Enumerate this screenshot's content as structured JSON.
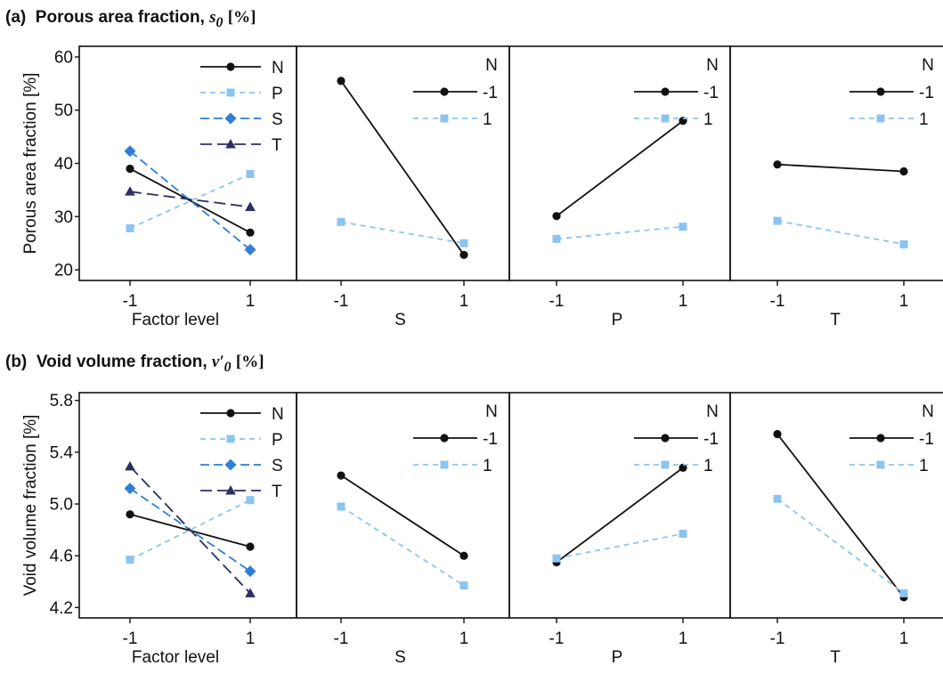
{
  "rows": [
    {
      "tag": "(a)",
      "title": "Porous area fraction,",
      "symbol": "s",
      "symbol_sub": "0",
      "unit": "[%]"
    },
    {
      "tag": "(b)",
      "title": "Void volume fraction,",
      "symbol": "v′",
      "symbol_sub": "0",
      "unit": "[%]"
    }
  ],
  "colors": {
    "N": "#111111",
    "P": "#8cc4f0",
    "S": "#2f7fd8",
    "T": "#2b2f63",
    "minus1": "#111111",
    "plus1": "#8cc4f0"
  },
  "chart_data": [
    {
      "type": "line",
      "title": "Porous area fraction, s0 [%]",
      "ylabel": "Porous area fraction [%]",
      "ylim": [
        18,
        62
      ],
      "yticks": [
        20,
        30,
        40,
        50,
        60
      ],
      "panels": [
        {
          "kind": "main",
          "xlabel": "Factor level",
          "x": [
            "-1",
            "1"
          ],
          "series": [
            {
              "name": "N",
              "values": [
                39,
                27
              ]
            },
            {
              "name": "P",
              "values": [
                27.8,
                38
              ]
            },
            {
              "name": "S",
              "values": [
                42.3,
                23.8
              ]
            },
            {
              "name": "T",
              "values": [
                34.7,
                31.8
              ]
            }
          ]
        },
        {
          "kind": "interaction",
          "xlabel": "S",
          "x": [
            "-1",
            "1"
          ],
          "legend_title": "N",
          "series": [
            {
              "name": "-1",
              "values": [
                55.5,
                22.8
              ]
            },
            {
              "name": "1",
              "values": [
                29,
                25
              ]
            }
          ]
        },
        {
          "kind": "interaction",
          "xlabel": "P",
          "x": [
            "-1",
            "1"
          ],
          "legend_title": "N",
          "series": [
            {
              "name": "-1",
              "values": [
                30.1,
                48
              ]
            },
            {
              "name": "1",
              "values": [
                25.8,
                28.1
              ]
            }
          ]
        },
        {
          "kind": "interaction",
          "xlabel": "T",
          "x": [
            "-1",
            "1"
          ],
          "legend_title": "N",
          "series": [
            {
              "name": "-1",
              "values": [
                39.8,
                38.5
              ]
            },
            {
              "name": "1",
              "values": [
                29.2,
                24.8
              ]
            }
          ]
        }
      ]
    },
    {
      "type": "line",
      "title": "Void volume fraction, v′0 [%]",
      "ylabel": "Void volume fraction [%]",
      "ylim": [
        4.12,
        5.86
      ],
      "yticks": [
        "4.2",
        "4.6",
        "5.0",
        "5.4",
        "5.8"
      ],
      "panels": [
        {
          "kind": "main",
          "xlabel": "Factor level",
          "x": [
            "-1",
            "1"
          ],
          "series": [
            {
              "name": "N",
              "values": [
                4.92,
                4.67
              ]
            },
            {
              "name": "P",
              "values": [
                4.57,
                5.03
              ]
            },
            {
              "name": "S",
              "values": [
                5.12,
                4.48
              ]
            },
            {
              "name": "T",
              "values": [
                5.29,
                4.31
              ]
            }
          ]
        },
        {
          "kind": "interaction",
          "xlabel": "S",
          "x": [
            "-1",
            "1"
          ],
          "legend_title": "N",
          "series": [
            {
              "name": "-1",
              "values": [
                5.22,
                4.6
              ]
            },
            {
              "name": "1",
              "values": [
                4.98,
                4.37
              ]
            }
          ]
        },
        {
          "kind": "interaction",
          "xlabel": "P",
          "x": [
            "-1",
            "1"
          ],
          "legend_title": "N",
          "series": [
            {
              "name": "-1",
              "values": [
                4.55,
                5.28
              ]
            },
            {
              "name": "1",
              "values": [
                4.58,
                4.77
              ]
            }
          ]
        },
        {
          "kind": "interaction",
          "xlabel": "T",
          "x": [
            "-1",
            "1"
          ],
          "legend_title": "N",
          "series": [
            {
              "name": "-1",
              "values": [
                5.54,
                4.28
              ]
            },
            {
              "name": "1",
              "values": [
                5.04,
                4.31
              ]
            }
          ]
        }
      ]
    }
  ]
}
